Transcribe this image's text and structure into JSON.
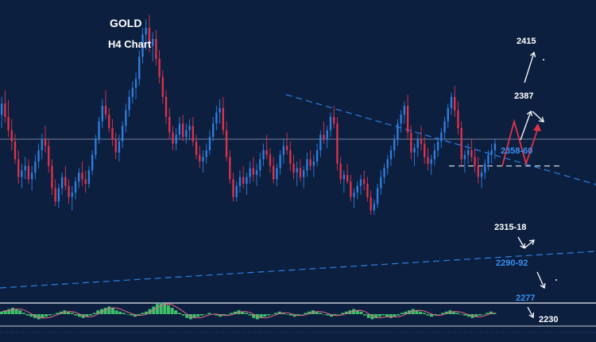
{
  "colors": {
    "background": "#0c1f3f",
    "bull_candle": "#2f7fe0",
    "bear_candle": "#e0334a",
    "trendline": "#2f7fe0",
    "white_label": "#ffffff",
    "blue_label": "#3a8ff0",
    "projection_red": "#e0334a",
    "projection_white": "#ffffff",
    "osc_green": "#3fbf6a",
    "osc_pink": "#e06a8a"
  },
  "chart_data": {
    "type": "candlestick",
    "title": "GOLD",
    "subtitle": "H4 Chart",
    "ylim": [
      2195,
      2465
    ],
    "candles": [
      [
        2362,
        2378,
        2350,
        2372
      ],
      [
        2372,
        2384,
        2355,
        2360
      ],
      [
        2360,
        2375,
        2342,
        2348
      ],
      [
        2348,
        2358,
        2330,
        2338
      ],
      [
        2338,
        2345,
        2318,
        2322
      ],
      [
        2322,
        2330,
        2300,
        2306
      ],
      [
        2306,
        2318,
        2296,
        2312
      ],
      [
        2312,
        2324,
        2304,
        2316
      ],
      [
        2316,
        2322,
        2300,
        2304
      ],
      [
        2304,
        2316,
        2294,
        2310
      ],
      [
        2310,
        2326,
        2304,
        2320
      ],
      [
        2320,
        2336,
        2314,
        2330
      ],
      [
        2330,
        2345,
        2322,
        2340
      ],
      [
        2340,
        2352,
        2328,
        2334
      ],
      [
        2334,
        2340,
        2310,
        2316
      ],
      [
        2316,
        2322,
        2290,
        2296
      ],
      [
        2296,
        2304,
        2280,
        2284
      ],
      [
        2284,
        2300,
        2278,
        2296
      ],
      [
        2296,
        2310,
        2290,
        2306
      ],
      [
        2306,
        2316,
        2294,
        2298
      ],
      [
        2298,
        2304,
        2282,
        2288
      ],
      [
        2288,
        2298,
        2276,
        2292
      ],
      [
        2292,
        2306,
        2286,
        2302
      ],
      [
        2302,
        2314,
        2296,
        2310
      ],
      [
        2310,
        2320,
        2298,
        2304
      ],
      [
        2304,
        2312,
        2292,
        2300
      ],
      [
        2300,
        2316,
        2296,
        2312
      ],
      [
        2312,
        2330,
        2308,
        2326
      ],
      [
        2326,
        2344,
        2322,
        2340
      ],
      [
        2340,
        2360,
        2336,
        2356
      ],
      [
        2356,
        2376,
        2350,
        2370
      ],
      [
        2370,
        2384,
        2358,
        2362
      ],
      [
        2362,
        2368,
        2346,
        2350
      ],
      [
        2350,
        2358,
        2334,
        2340
      ],
      [
        2340,
        2346,
        2322,
        2328
      ],
      [
        2328,
        2344,
        2320,
        2338
      ],
      [
        2338,
        2356,
        2332,
        2352
      ],
      [
        2352,
        2372,
        2346,
        2366
      ],
      [
        2366,
        2384,
        2360,
        2378
      ],
      [
        2378,
        2392,
        2372,
        2386
      ],
      [
        2386,
        2400,
        2376,
        2394
      ],
      [
        2394,
        2420,
        2388,
        2414
      ],
      [
        2414,
        2440,
        2408,
        2434
      ],
      [
        2434,
        2448,
        2420,
        2440
      ],
      [
        2440,
        2452,
        2418,
        2424
      ],
      [
        2424,
        2436,
        2410,
        2430
      ],
      [
        2430,
        2438,
        2406,
        2412
      ],
      [
        2412,
        2420,
        2390,
        2396
      ],
      [
        2396,
        2402,
        2372,
        2378
      ],
      [
        2378,
        2384,
        2354,
        2360
      ],
      [
        2360,
        2368,
        2340,
        2346
      ],
      [
        2346,
        2352,
        2330,
        2336
      ],
      [
        2336,
        2350,
        2330,
        2344
      ],
      [
        2344,
        2360,
        2340,
        2354
      ],
      [
        2354,
        2362,
        2338,
        2342
      ],
      [
        2342,
        2354,
        2336,
        2348
      ],
      [
        2348,
        2358,
        2340,
        2352
      ],
      [
        2352,
        2360,
        2334,
        2338
      ],
      [
        2338,
        2344,
        2322,
        2326
      ],
      [
        2326,
        2334,
        2314,
        2320
      ],
      [
        2320,
        2330,
        2310,
        2324
      ],
      [
        2324,
        2336,
        2318,
        2330
      ],
      [
        2330,
        2348,
        2326,
        2342
      ],
      [
        2342,
        2360,
        2338,
        2354
      ],
      [
        2354,
        2370,
        2348,
        2364
      ],
      [
        2364,
        2376,
        2354,
        2368
      ],
      [
        2368,
        2378,
        2344,
        2348
      ],
      [
        2348,
        2356,
        2320,
        2324
      ],
      [
        2324,
        2330,
        2300,
        2304
      ],
      [
        2304,
        2310,
        2284,
        2288
      ],
      [
        2288,
        2302,
        2284,
        2298
      ],
      [
        2298,
        2312,
        2292,
        2306
      ],
      [
        2306,
        2316,
        2296,
        2300
      ],
      [
        2300,
        2310,
        2290,
        2306
      ],
      [
        2306,
        2320,
        2300,
        2314
      ],
      [
        2314,
        2324,
        2302,
        2308
      ],
      [
        2308,
        2318,
        2298,
        2312
      ],
      [
        2312,
        2328,
        2306,
        2322
      ],
      [
        2322,
        2336,
        2316,
        2330
      ],
      [
        2330,
        2344,
        2322,
        2326
      ],
      [
        2326,
        2332,
        2310,
        2316
      ],
      [
        2316,
        2324,
        2300,
        2304
      ],
      [
        2304,
        2318,
        2298,
        2314
      ],
      [
        2314,
        2330,
        2308,
        2326
      ],
      [
        2326,
        2340,
        2318,
        2334
      ],
      [
        2334,
        2346,
        2326,
        2330
      ],
      [
        2330,
        2338,
        2312,
        2318
      ],
      [
        2318,
        2326,
        2304,
        2310
      ],
      [
        2310,
        2320,
        2298,
        2314
      ],
      [
        2314,
        2322,
        2302,
        2306
      ],
      [
        2306,
        2316,
        2296,
        2312
      ],
      [
        2312,
        2328,
        2306,
        2322
      ],
      [
        2322,
        2330,
        2312,
        2316
      ],
      [
        2316,
        2326,
        2306,
        2320
      ],
      [
        2320,
        2336,
        2316,
        2330
      ],
      [
        2330,
        2348,
        2324,
        2344
      ],
      [
        2344,
        2356,
        2336,
        2340
      ],
      [
        2340,
        2352,
        2332,
        2348
      ],
      [
        2348,
        2364,
        2342,
        2360
      ],
      [
        2360,
        2370,
        2350,
        2354
      ],
      [
        2354,
        2360,
        2312,
        2318
      ],
      [
        2318,
        2324,
        2300,
        2304
      ],
      [
        2304,
        2312,
        2292,
        2308
      ],
      [
        2308,
        2318,
        2300,
        2302
      ],
      [
        2302,
        2308,
        2284,
        2288
      ],
      [
        2288,
        2296,
        2278,
        2292
      ],
      [
        2292,
        2302,
        2286,
        2298
      ],
      [
        2298,
        2308,
        2290,
        2304
      ],
      [
        2304,
        2312,
        2294,
        2300
      ],
      [
        2300,
        2306,
        2284,
        2288
      ],
      [
        2288,
        2294,
        2272,
        2276
      ],
      [
        2276,
        2286,
        2272,
        2282
      ],
      [
        2282,
        2300,
        2278,
        2296
      ],
      [
        2296,
        2312,
        2290,
        2306
      ],
      [
        2306,
        2318,
        2300,
        2314
      ],
      [
        2314,
        2326,
        2308,
        2322
      ],
      [
        2322,
        2334,
        2316,
        2330
      ],
      [
        2330,
        2344,
        2324,
        2340
      ],
      [
        2340,
        2358,
        2334,
        2354
      ],
      [
        2354,
        2366,
        2346,
        2362
      ],
      [
        2362,
        2374,
        2354,
        2370
      ],
      [
        2370,
        2380,
        2340,
        2346
      ],
      [
        2346,
        2352,
        2322,
        2328
      ],
      [
        2328,
        2336,
        2316,
        2332
      ],
      [
        2332,
        2344,
        2324,
        2340
      ],
      [
        2340,
        2352,
        2330,
        2336
      ],
      [
        2336,
        2342,
        2318,
        2324
      ],
      [
        2324,
        2332,
        2312,
        2318
      ],
      [
        2318,
        2326,
        2308,
        2322
      ],
      [
        2322,
        2336,
        2316,
        2330
      ],
      [
        2330,
        2342,
        2324,
        2338
      ],
      [
        2338,
        2350,
        2332,
        2346
      ],
      [
        2346,
        2360,
        2340,
        2356
      ],
      [
        2356,
        2372,
        2350,
        2368
      ],
      [
        2368,
        2382,
        2362,
        2378
      ],
      [
        2378,
        2388,
        2360,
        2366
      ],
      [
        2366,
        2374,
        2344,
        2350
      ],
      [
        2350,
        2356,
        2316,
        2322
      ],
      [
        2322,
        2330,
        2310,
        2326
      ],
      [
        2326,
        2336,
        2318,
        2330
      ],
      [
        2330,
        2340,
        2320,
        2324
      ],
      [
        2324,
        2332,
        2310,
        2316
      ],
      [
        2316,
        2324,
        2300,
        2306
      ],
      [
        2306,
        2314,
        2296,
        2310
      ],
      [
        2310,
        2322,
        2304,
        2318
      ],
      [
        2318,
        2330,
        2312,
        2326
      ],
      [
        2326,
        2336,
        2318,
        2330
      ],
      [
        2330,
        2340,
        2322,
        2336
      ]
    ],
    "levels": [
      {
        "label": "2415",
        "kind": "target_up"
      },
      {
        "label": "2387",
        "kind": "target_up"
      },
      {
        "label": "2358-60",
        "kind": "resistance"
      },
      {
        "label": "2315-18",
        "kind": "pivot"
      },
      {
        "label": "2290-92",
        "kind": "support"
      },
      {
        "label": "2277",
        "kind": "support"
      },
      {
        "label": "2230",
        "kind": "target_down"
      }
    ],
    "horizontal_line": 2340,
    "pivot_line": 2316,
    "upper_trendline": {
      "from": [
        0.48,
        2420
      ],
      "to": [
        1.0,
        2345
      ]
    },
    "lower_trendline": {
      "from": [
        0.0,
        2240
      ],
      "to": [
        1.0,
        2294
      ]
    },
    "oscillator": [
      2,
      3,
      4,
      5,
      4,
      3,
      1,
      -1,
      -2,
      -3,
      -4,
      -3,
      -2,
      -1,
      0,
      1,
      2,
      3,
      2,
      1,
      -1,
      -2,
      -3,
      -2,
      -1,
      1,
      3,
      4,
      5,
      6,
      5,
      3,
      2,
      1,
      0,
      -1,
      -2,
      -1,
      1,
      2,
      4,
      6,
      8,
      9,
      8,
      7,
      5,
      3,
      1,
      -1,
      -3,
      -4,
      -3,
      -2,
      -1,
      0,
      1,
      0,
      -1,
      -2,
      -1,
      0,
      1,
      2,
      3,
      2,
      1,
      -1,
      -3,
      -4,
      -3,
      -2,
      -1,
      0,
      1,
      2,
      1,
      0,
      -1,
      -2,
      -1,
      0,
      1,
      2,
      3,
      2,
      1,
      0,
      -1,
      -2,
      -1,
      0,
      1,
      2,
      3,
      4,
      3,
      2,
      -1,
      -3,
      -4,
      -3,
      -2,
      -1,
      -2,
      -3,
      -2,
      -1,
      1,
      2,
      3,
      4,
      3,
      2,
      1,
      -1,
      -2,
      -1,
      0,
      1,
      2,
      3,
      2,
      1,
      0,
      -1,
      -2,
      -3,
      -2,
      -1,
      0,
      1,
      2,
      1
    ],
    "projections": [
      {
        "color_key": "projection_red",
        "points": [
          [
            2316,
            0
          ],
          [
            2356,
            1
          ],
          [
            2318,
            2
          ],
          [
            2350,
            3
          ]
        ]
      }
    ]
  }
}
